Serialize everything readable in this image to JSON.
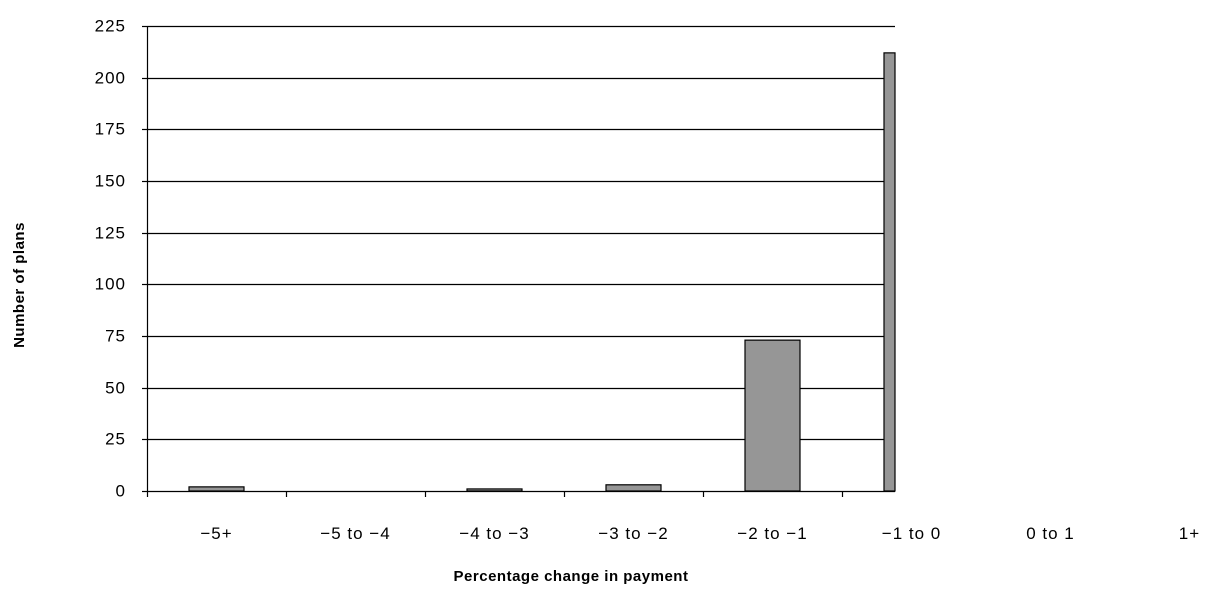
{
  "chart_data": {
    "type": "bar",
    "xlabel": "Percentage change in payment",
    "ylabel": "Number of plans",
    "categories": [
      "−5+",
      "−5 to −4",
      "−4 to −3",
      "−3 to −2",
      "−2 to −1",
      "−1 to 0",
      "0 to 1",
      "1+"
    ],
    "values": [
      2,
      0,
      1,
      3,
      73,
      212,
      0,
      0
    ],
    "ylim": [
      0,
      225
    ],
    "yticks": [
      0,
      25,
      50,
      75,
      100,
      125,
      150,
      175,
      200,
      225
    ],
    "grid": true,
    "legend": "none",
    "colors": {
      "bar_fill": "#969696",
      "bar_stroke": "#000000",
      "grid": "#000000"
    }
  }
}
